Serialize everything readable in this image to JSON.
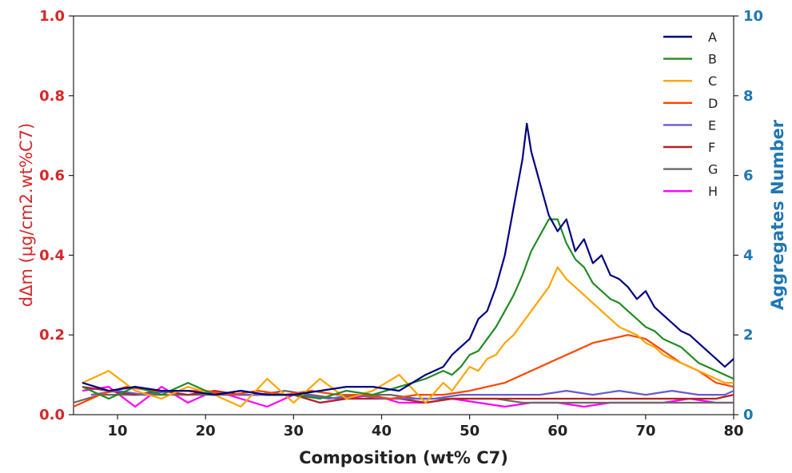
{
  "chart_data": {
    "type": "line",
    "xlabel": "Composition (wt% C7)",
    "ylabel_left": "dΔm (μg/cm2.wt%C7)",
    "ylabel_right": "Aggregates Number",
    "xlim": [
      5,
      80
    ],
    "ylim_left": [
      0,
      1.0
    ],
    "ylim_right": [
      0,
      10
    ],
    "xticks": [
      "10",
      "20",
      "30",
      "40",
      "50",
      "60",
      "70",
      "80"
    ],
    "yticks_left": [
      "0.0",
      "0.2",
      "0.4",
      "0.6",
      "0.8",
      "1.0"
    ],
    "yticks_right": [
      "0",
      "2",
      "4",
      "6",
      "8",
      "10"
    ],
    "legend_position": "top-right",
    "grid": false,
    "series": [
      {
        "name": "A",
        "color": "#000080",
        "x": [
          6,
          9,
          12,
          15,
          18,
          21,
          24,
          27,
          30,
          33,
          36,
          39,
          42,
          45,
          47,
          48,
          50,
          51,
          52,
          53,
          54,
          55,
          56,
          56.5,
          57,
          58,
          59,
          60,
          61,
          62,
          63,
          64,
          65,
          66,
          67,
          68,
          69,
          70,
          71,
          72,
          73,
          74,
          75,
          76,
          77,
          78,
          79,
          80
        ],
        "y": [
          0.08,
          0.06,
          0.07,
          0.06,
          0.06,
          0.05,
          0.06,
          0.05,
          0.05,
          0.06,
          0.07,
          0.07,
          0.06,
          0.1,
          0.12,
          0.15,
          0.19,
          0.24,
          0.26,
          0.32,
          0.4,
          0.52,
          0.64,
          0.73,
          0.66,
          0.58,
          0.5,
          0.46,
          0.49,
          0.41,
          0.44,
          0.38,
          0.4,
          0.35,
          0.34,
          0.32,
          0.29,
          0.31,
          0.27,
          0.25,
          0.23,
          0.21,
          0.2,
          0.18,
          0.16,
          0.14,
          0.12,
          0.14
        ]
      },
      {
        "name": "B",
        "color": "#228b22",
        "x": [
          6,
          9,
          12,
          15,
          18,
          21,
          24,
          27,
          30,
          33,
          36,
          39,
          42,
          45,
          47,
          48,
          49,
          50,
          51,
          52,
          53,
          54,
          55,
          56,
          57,
          58,
          59,
          60,
          61,
          62,
          63,
          64,
          65,
          66,
          67,
          68,
          69,
          70,
          71,
          72,
          73,
          74,
          75,
          76,
          77,
          78,
          79,
          80
        ],
        "y": [
          0.07,
          0.04,
          0.07,
          0.05,
          0.08,
          0.05,
          0.06,
          0.05,
          0.05,
          0.04,
          0.06,
          0.05,
          0.07,
          0.09,
          0.11,
          0.1,
          0.12,
          0.15,
          0.16,
          0.19,
          0.22,
          0.26,
          0.3,
          0.35,
          0.41,
          0.45,
          0.49,
          0.49,
          0.43,
          0.39,
          0.37,
          0.33,
          0.31,
          0.29,
          0.28,
          0.26,
          0.24,
          0.22,
          0.21,
          0.19,
          0.18,
          0.17,
          0.15,
          0.13,
          0.12,
          0.11,
          0.1,
          0.09
        ]
      },
      {
        "name": "C",
        "color": "#ffa500",
        "x": [
          6,
          9,
          12,
          15,
          18,
          21,
          24,
          27,
          30,
          33,
          36,
          39,
          42,
          45,
          47,
          48,
          49,
          50,
          51,
          52,
          53,
          54,
          55,
          56,
          57,
          58,
          59,
          60,
          61,
          62,
          63,
          64,
          65,
          66,
          67,
          68,
          69,
          70,
          71,
          72,
          73,
          74,
          75,
          76,
          77,
          78,
          79,
          80
        ],
        "y": [
          0.08,
          0.11,
          0.06,
          0.04,
          0.07,
          0.05,
          0.02,
          0.09,
          0.03,
          0.09,
          0.04,
          0.06,
          0.1,
          0.03,
          0.08,
          0.06,
          0.09,
          0.12,
          0.11,
          0.14,
          0.15,
          0.18,
          0.2,
          0.23,
          0.26,
          0.29,
          0.32,
          0.37,
          0.34,
          0.32,
          0.3,
          0.28,
          0.26,
          0.24,
          0.22,
          0.21,
          0.2,
          0.18,
          0.17,
          0.15,
          0.14,
          0.13,
          0.12,
          0.11,
          0.1,
          0.09,
          0.08,
          0.08
        ]
      },
      {
        "name": "D",
        "color": "#ff4500",
        "x": [
          5,
          8,
          11,
          14,
          17,
          20,
          23,
          26,
          29,
          32,
          35,
          38,
          41,
          44,
          47,
          50,
          52,
          54,
          56,
          58,
          60,
          62,
          64,
          66,
          68,
          70,
          72,
          74,
          76,
          78,
          80
        ],
        "y": [
          0.02,
          0.05,
          0.07,
          0.06,
          0.06,
          0.06,
          0.05,
          0.06,
          0.05,
          0.06,
          0.05,
          0.05,
          0.04,
          0.05,
          0.05,
          0.06,
          0.07,
          0.08,
          0.1,
          0.12,
          0.14,
          0.16,
          0.18,
          0.19,
          0.2,
          0.19,
          0.16,
          0.13,
          0.11,
          0.08,
          0.07
        ]
      },
      {
        "name": "E",
        "color": "#6a5acd",
        "x": [
          7,
          10,
          13,
          16,
          19,
          22,
          25,
          28,
          31,
          34,
          37,
          40,
          43,
          46,
          49,
          52,
          55,
          58,
          61,
          64,
          67,
          70,
          73,
          76,
          79,
          80
        ],
        "y": [
          0.05,
          0.06,
          0.05,
          0.06,
          0.06,
          0.05,
          0.05,
          0.05,
          0.05,
          0.04,
          0.05,
          0.04,
          0.04,
          0.04,
          0.05,
          0.05,
          0.05,
          0.05,
          0.06,
          0.05,
          0.06,
          0.05,
          0.06,
          0.05,
          0.05,
          0.06
        ]
      },
      {
        "name": "F",
        "color": "#b22222",
        "x": [
          6,
          9,
          12,
          15,
          18,
          21,
          24,
          27,
          30,
          33,
          36,
          39,
          42,
          45,
          48,
          51,
          54,
          57,
          60,
          63,
          66,
          69,
          72,
          75,
          78,
          80
        ],
        "y": [
          0.07,
          0.06,
          0.05,
          0.06,
          0.05,
          0.06,
          0.05,
          0.05,
          0.05,
          0.03,
          0.04,
          0.04,
          0.04,
          0.03,
          0.04,
          0.04,
          0.04,
          0.04,
          0.04,
          0.04,
          0.04,
          0.04,
          0.04,
          0.04,
          0.04,
          0.05
        ]
      },
      {
        "name": "G",
        "color": "#696969",
        "x": [
          5,
          8,
          11,
          14,
          17,
          20,
          23,
          26,
          29,
          32,
          35,
          38,
          41,
          44,
          47,
          50,
          53,
          56,
          59,
          62,
          65,
          68,
          71,
          74,
          77,
          80
        ],
        "y": [
          0.03,
          0.05,
          0.05,
          0.05,
          0.05,
          0.05,
          0.05,
          0.05,
          0.06,
          0.05,
          0.04,
          0.05,
          0.05,
          0.04,
          0.04,
          0.04,
          0.04,
          0.03,
          0.03,
          0.03,
          0.03,
          0.03,
          0.03,
          0.03,
          0.03,
          0.03
        ]
      },
      {
        "name": "H",
        "color": "#ff00ff",
        "x": [
          6,
          9,
          12,
          15,
          18,
          21,
          24,
          27,
          30,
          33,
          36,
          39,
          42,
          45,
          48,
          51,
          54,
          57,
          60,
          63,
          66,
          69,
          72,
          75,
          78,
          80
        ],
        "y": [
          0.06,
          0.07,
          0.02,
          0.07,
          0.03,
          0.06,
          0.04,
          0.02,
          0.05,
          0.03,
          0.04,
          0.05,
          0.03,
          0.03,
          0.04,
          0.03,
          0.02,
          0.03,
          0.03,
          0.02,
          0.03,
          0.03,
          0.03,
          0.04,
          0.03,
          0.03
        ]
      }
    ]
  }
}
